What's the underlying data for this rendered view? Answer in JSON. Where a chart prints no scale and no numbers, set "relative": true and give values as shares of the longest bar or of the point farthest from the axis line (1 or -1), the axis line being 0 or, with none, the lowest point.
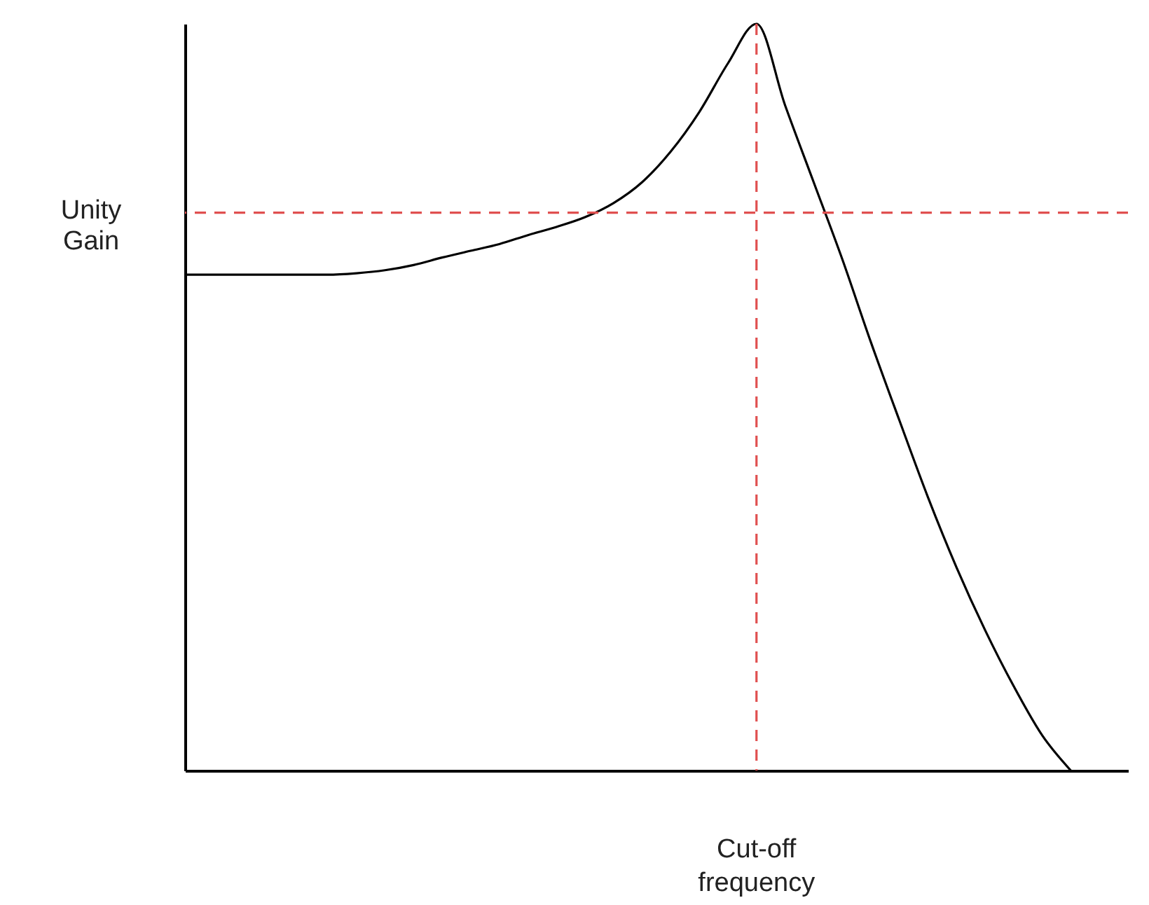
{
  "chart_data": {
    "type": "line",
    "relative": true,
    "line_style": "solid",
    "annotations": [
      "Cut-off frequency"
    ],
    "categories": [
      null,
      null,
      null,
      null,
      null,
      null,
      null,
      null,
      null,
      null,
      null,
      null,
      null,
      null,
      null,
      null,
      null,
      null,
      null,
      null,
      null,
      null,
      null,
      null,
      null,
      null,
      null,
      null,
      null,
      null,
      null,
      null,
      null,
      null
    ],
    "series": [
      {
        "color": "#000000",
        "values": [
          0.664,
          0.664,
          0.664,
          0.664,
          0.664,
          0.664,
          0.666,
          0.67,
          0.677,
          0.687,
          0.696,
          0.705,
          0.717,
          0.728,
          0.741,
          0.76,
          0.788,
          0.829,
          0.882,
          0.947,
          1,
          0.891,
          0.788,
          0.685,
          0.574,
          0.469,
          0.366,
          0.272,
          0.188,
          0.113,
          0.047,
          0,
          null,
          null
        ]
      }
    ],
    "ref_lines": [
      {
        "axis": "y",
        "value": 0.747,
        "label": "Unity Gain",
        "color": "#e05050",
        "line_style": "dashed"
      }
    ]
  }
}
